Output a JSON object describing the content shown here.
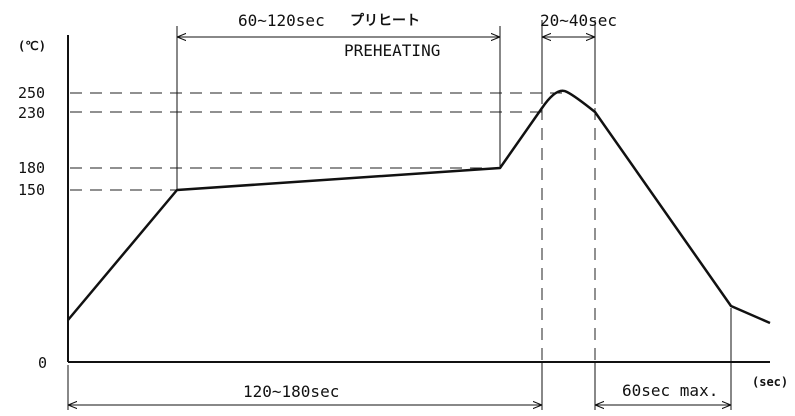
{
  "units": {
    "temperature": "(℃)",
    "time": "(sec)"
  },
  "y_ticks": [
    "250",
    "230",
    "180",
    "150",
    "0"
  ],
  "labels": {
    "preheat_time": "60~120sec",
    "preheat_jp": "プリヒート",
    "preheat_en": "PREHEATING",
    "peak_time": "20~40sec",
    "total_time": "120~180sec",
    "cooling_time": "60sec max."
  }
}
